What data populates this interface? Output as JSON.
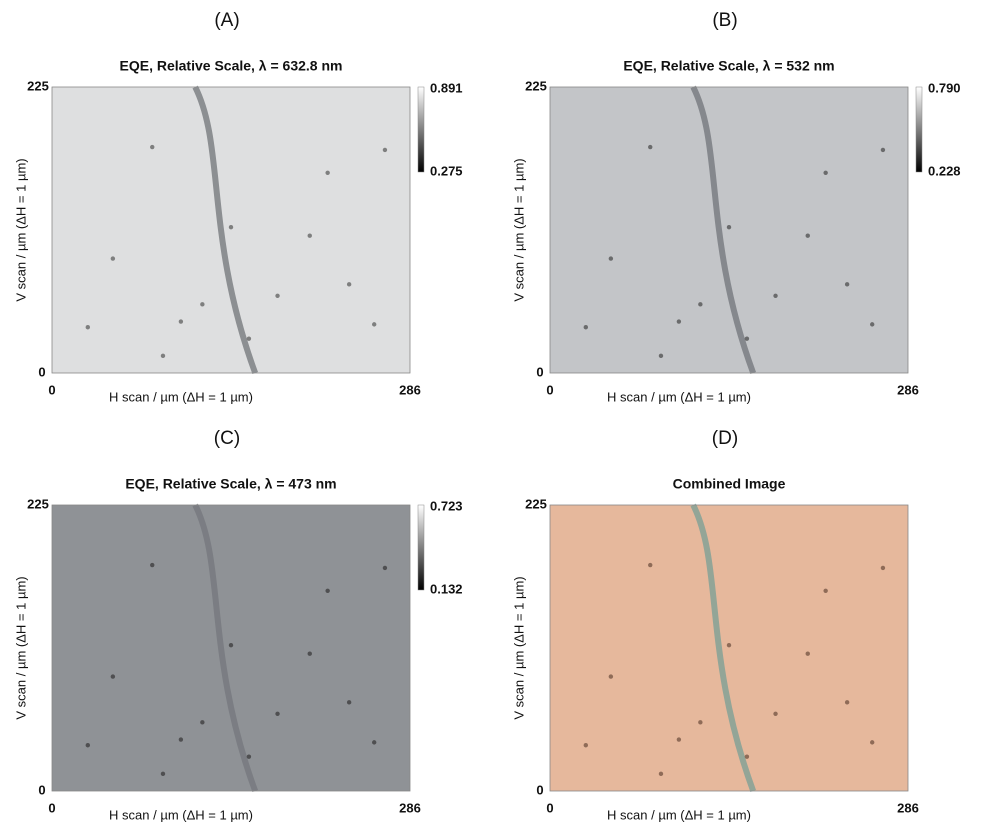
{
  "panels": [
    {
      "label": "(A)",
      "title": "EQE, Relative Scale, λ = 632.8 nm",
      "xlabel": "H scan / µm (ΔH = 1 µm)",
      "ylabel": "V scan / µm (ΔH = 1 µm)",
      "xticks": [
        "0",
        "286"
      ],
      "yticks": [
        "225",
        "0"
      ],
      "colorbar": [
        "0.891",
        "0.275"
      ]
    },
    {
      "label": "(B)",
      "title": "EQE, Relative Scale, λ = 532 nm",
      "xlabel": "H scan / µm (ΔH = 1 µm)",
      "ylabel": "V scan / µm (ΔH = 1 µm)",
      "xticks": [
        "0",
        "286"
      ],
      "yticks": [
        "225",
        "0"
      ],
      "colorbar": [
        "0.790",
        "0.228"
      ]
    },
    {
      "label": "(C)",
      "title": "EQE, Relative Scale, λ = 473 nm",
      "xlabel": "H scan / µm (ΔH = 1 µm)",
      "ylabel": "V scan / µm (ΔH = 1 µm)",
      "xticks": [
        "0",
        "286"
      ],
      "yticks": [
        "225",
        "0"
      ],
      "colorbar": [
        "0.723",
        "0.132"
      ]
    },
    {
      "label": "(D)",
      "title": "Combined Image",
      "xlabel": "H scan / µm (ΔH = 1 µm)",
      "ylabel": "V scan / µm (ΔH = 1 µm)",
      "xticks": [
        "0",
        "286"
      ],
      "yticks": [
        "225",
        "0"
      ]
    }
  ]
}
